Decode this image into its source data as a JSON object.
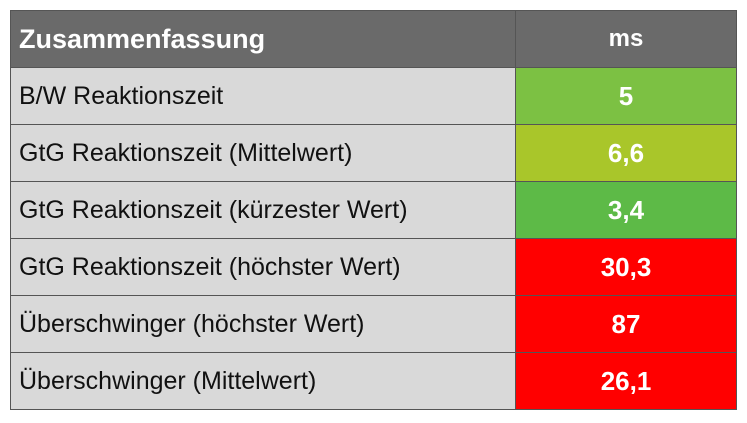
{
  "table": {
    "header": [
      "Zusammenfassung",
      "ms"
    ],
    "rows": [
      [
        "B/W Reaktionszeit",
        "5"
      ],
      [
        "GtG Reaktionszeit (Mittelwert)",
        "6,6"
      ],
      [
        "GtG Reaktionszeit (kürzester Wert)",
        "3,4"
      ],
      [
        "GtG Reaktionszeit (höchster Wert)",
        "30,3"
      ],
      [
        "Überschwinger (höchster Wert)",
        "87"
      ],
      [
        "Überschwinger (Mittelwert)",
        "26,1"
      ]
    ],
    "row_colors": [
      "#7cc143",
      "#a9c62a",
      "#5dba47",
      "#ff0000",
      "#ff0000",
      "#ff0000"
    ]
  }
}
